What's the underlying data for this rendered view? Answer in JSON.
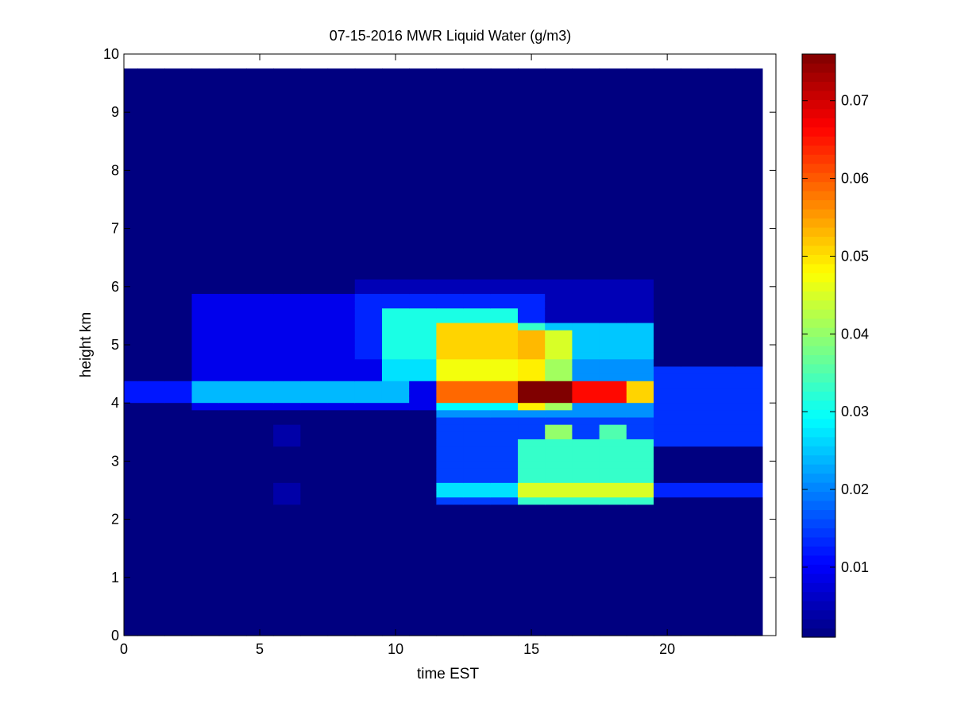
{
  "chart_data": {
    "type": "heatmap",
    "title": "07-15-2016 MWR Liquid Water (g/m3)",
    "xlabel": "time EST",
    "ylabel": "height km",
    "xlim": [
      0,
      24
    ],
    "ylim": [
      0,
      10
    ],
    "xticks": [
      0,
      5,
      10,
      15,
      20
    ],
    "yticks": [
      0,
      1,
      2,
      3,
      4,
      5,
      6,
      7,
      8,
      9,
      10
    ],
    "colorbar": {
      "colormap": "jet",
      "clim": [
        0.001,
        0.076
      ],
      "ticks": [
        0.01,
        0.02,
        0.03,
        0.04,
        0.05,
        0.06,
        0.07
      ],
      "tick_labels": [
        "0.01",
        "0.02",
        "0.03",
        "0.04",
        "0.05",
        "0.06",
        "0.07"
      ]
    },
    "grid": false,
    "cell": {
      "time_start": -0.5,
      "time_step": 1,
      "time_count": 24,
      "height_top": 9.75,
      "height_step": 0.125,
      "height_count": 78
    },
    "base_value": 0.001,
    "blobs": [
      {
        "t": [
          3,
          15
        ],
        "h": [
          3.9,
          5.9
        ],
        "v": 0.008
      },
      {
        "t": [
          8.5,
          19.5
        ],
        "h": [
          4.8,
          6.1
        ],
        "v": 0.004
      },
      {
        "t": [
          0,
          2
        ],
        "h": [
          4.05,
          4.35
        ],
        "v": 0.011
      },
      {
        "t": [
          3,
          10.5
        ],
        "h": [
          4.0,
          4.35
        ],
        "v": 0.015
      },
      {
        "t": [
          9.5,
          14.5
        ],
        "h": [
          4.4,
          5.6
        ],
        "v": 0.018
      },
      {
        "t": [
          12,
          19.5
        ],
        "h": [
          3.8,
          5.4
        ],
        "v": 0.02
      },
      {
        "t": [
          11.5,
          19.5
        ],
        "h": [
          2.3,
          3.8
        ],
        "v": 0.014
      },
      {
        "t": [
          14.6,
          19.4
        ],
        "h": [
          2.3,
          3.4
        ],
        "v": 0.018
      },
      {
        "t": [
          11.5,
          23.5
        ],
        "h": [
          2.35,
          2.6
        ],
        "v": 0.012
      },
      {
        "t": [
          19.5,
          23.5
        ],
        "h": [
          3.3,
          4.6
        ],
        "v": 0.013
      },
      {
        "t": [
          14.6,
          16.4
        ],
        "h": [
          3.9,
          5.3
        ],
        "v": 0.02
      },
      {
        "t": [
          12,
          19.4
        ],
        "h": [
          3.95,
          4.4
        ],
        "v": 0.03
      },
      {
        "t": [
          14.6,
          18.6
        ],
        "h": [
          3.95,
          4.4
        ],
        "v": 0.015
      },
      {
        "t": [
          15.5,
          16.5
        ],
        "h": [
          3.95,
          4.35
        ],
        "v": 0.012
      },
      {
        "t": [
          15.5,
          16.5
        ],
        "h": [
          3.4,
          3.6
        ],
        "v": 0.025
      },
      {
        "t": [
          17.5,
          18.5
        ],
        "h": [
          3.4,
          3.6
        ],
        "v": 0.02
      },
      {
        "t": [
          6,
          6.5
        ],
        "h": [
          2.3,
          2.6
        ],
        "v": 0.003
      },
      {
        "t": [
          6,
          6.5
        ],
        "h": [
          3.3,
          3.6
        ],
        "v": 0.003
      }
    ]
  }
}
